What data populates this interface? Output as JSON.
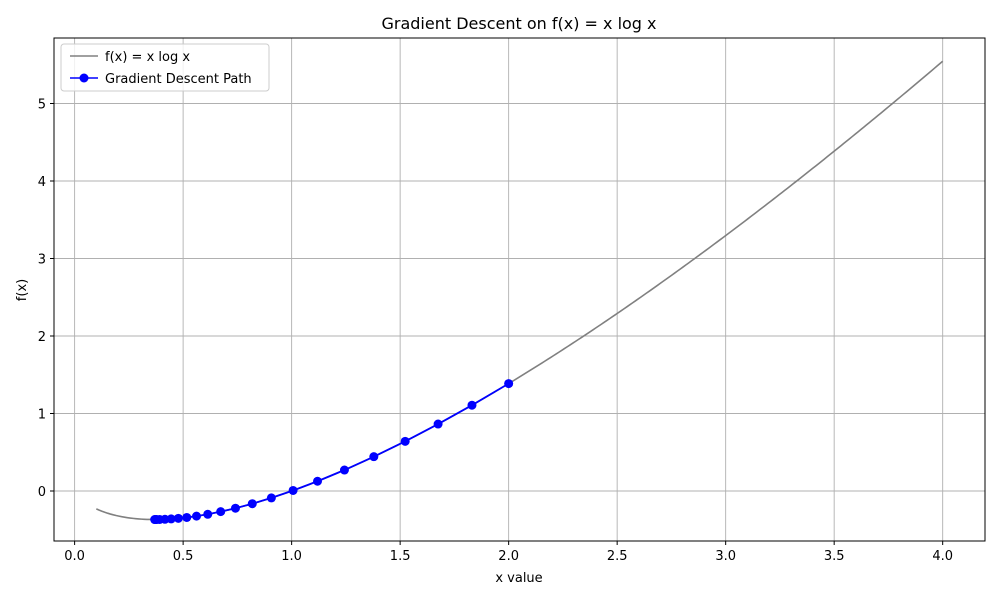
{
  "chart_data": {
    "type": "line",
    "title": "Gradient Descent on f(x) = x log x",
    "xlabel": "x value",
    "ylabel": "f(x)",
    "xlim": [
      -0.095,
      4.195
    ],
    "ylim": [
      -0.645,
      5.845
    ],
    "xticks": [
      0.0,
      0.5,
      1.0,
      1.5,
      2.0,
      2.5,
      3.0,
      3.5,
      4.0
    ],
    "xtick_labels": [
      "0.0",
      "0.5",
      "1.0",
      "1.5",
      "2.0",
      "2.5",
      "3.0",
      "3.5",
      "4.0"
    ],
    "yticks": [
      0,
      1,
      2,
      3,
      4,
      5
    ],
    "ytick_labels": [
      "0",
      "1",
      "2",
      "3",
      "4",
      "5"
    ],
    "grid": true,
    "legend": "top-left",
    "series": [
      {
        "name": "f(x) = x log x",
        "kind": "curve",
        "function": "x*ln(x)",
        "x_range": [
          0.1,
          4.0
        ],
        "color": "#808080"
      },
      {
        "name": "Gradient Descent Path",
        "kind": "line-markers",
        "color": "#0000ff",
        "x": [
          2.0,
          1.831,
          1.6749,
          1.5233,
          1.3787,
          1.2434,
          1.1192,
          1.0067,
          0.9066,
          0.8186,
          0.7412,
          0.6731,
          0.6135,
          0.5617,
          0.5168,
          0.4781,
          0.4448,
          0.4163,
          0.3921,
          0.3785,
          0.3721,
          0.3689
        ],
        "y": [
          1.386,
          1.107,
          0.864,
          0.641,
          0.443,
          0.271,
          0.126,
          0.007,
          -0.089,
          -0.164,
          -0.222,
          -0.266,
          -0.3,
          -0.324,
          -0.341,
          -0.353,
          -0.36,
          -0.365,
          -0.367,
          -0.368,
          -0.368,
          -0.368
        ]
      }
    ]
  }
}
